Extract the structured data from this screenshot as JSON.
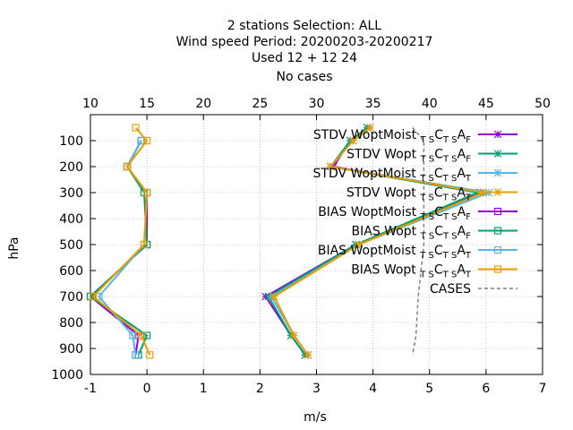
{
  "title_lines": [
    "2 stations Selection: ALL",
    "Wind speed  Period: 20200203-20200217",
    "Used  12 + 12 24",
    "No cases"
  ],
  "chart_data": {
    "type": "line",
    "xlabel": "m/s",
    "ylabel": "hPa",
    "xlim": [
      -1,
      7
    ],
    "ylim": [
      1000,
      0
    ],
    "x_ticks": [
      "-1",
      "0",
      "1",
      "2",
      "3",
      "4",
      "5",
      "6",
      "7"
    ],
    "x2lim": [
      10,
      50
    ],
    "x2_ticks": [
      "10",
      "15",
      "20",
      "25",
      "30",
      "35",
      "40",
      "45",
      "50"
    ],
    "y_ticks": [
      "100",
      "200",
      "300",
      "400",
      "500",
      "600",
      "700",
      "800",
      "900",
      "1000"
    ],
    "grid": true,
    "legend_position": "top-right",
    "levels": [
      50,
      100,
      200,
      300,
      500,
      700,
      850,
      925
    ],
    "series": [
      {
        "name": "STDV WoptMoist TS C TS A F",
        "color": "#9400d3",
        "marker": "asterisk",
        "values": [
          3.9,
          3.6,
          3.3,
          5.9,
          3.7,
          2.1,
          2.55,
          2.8
        ]
      },
      {
        "name": "STDV Wopt TS C TS A F",
        "color": "#009e73",
        "marker": "asterisk",
        "values": [
          3.9,
          3.6,
          3.25,
          5.85,
          3.7,
          2.15,
          2.55,
          2.8
        ]
      },
      {
        "name": "STDV WoptMoist TS C TS A T",
        "color": "#56b4e9",
        "marker": "asterisk",
        "values": [
          3.95,
          3.65,
          3.25,
          6.05,
          3.75,
          2.2,
          2.6,
          2.85
        ]
      },
      {
        "name": "STDV Wopt TS C TS A T",
        "color": "#e69f00",
        "marker": "asterisk",
        "values": [
          3.95,
          3.65,
          3.25,
          5.95,
          3.75,
          2.25,
          2.6,
          2.85
        ]
      },
      {
        "name": "BIAS WoptMoist TS C TS A F",
        "color": "#9400d3",
        "marker": "square",
        "values": [
          null,
          -0.1,
          -0.35,
          0.0,
          0.0,
          -1.0,
          -0.15,
          -0.2
        ]
      },
      {
        "name": "BIAS Wopt TS C TS A F",
        "color": "#009e73",
        "marker": "square",
        "values": [
          null,
          -0.1,
          -0.35,
          -0.05,
          0.0,
          -1.0,
          0.0,
          -0.15
        ]
      },
      {
        "name": "BIAS WoptMoist TS C TS A T",
        "color": "#56b4e9",
        "marker": "square",
        "values": [
          null,
          -0.1,
          -0.35,
          0.0,
          -0.05,
          -0.85,
          -0.25,
          -0.2
        ]
      },
      {
        "name": "BIAS Wopt TS C TS A T",
        "color": "#e69f00",
        "marker": "square",
        "values": [
          -0.2,
          0.0,
          -0.35,
          0.0,
          -0.05,
          -0.95,
          -0.1,
          0.05
        ]
      }
    ],
    "cases": {
      "name": "CASES",
      "color": "#808080",
      "x2_values": [
        38.5,
        39.5,
        39.5,
        39.5,
        39.5,
        39.0,
        38.8,
        38.5
      ],
      "levels": [
        50,
        100,
        200,
        300,
        500,
        700,
        850,
        925
      ]
    },
    "legend_entries": [
      {
        "prefix": "STDV WoptMoist",
        "sub_state": "F"
      },
      {
        "prefix": "STDV Wopt",
        "sub_state": "F"
      },
      {
        "prefix": "STDV WoptMoist",
        "sub_state": "T"
      },
      {
        "prefix": "STDV Wopt",
        "sub_state": "T"
      },
      {
        "prefix": "BIAS WoptMoist",
        "sub_state": "F"
      },
      {
        "prefix": "BIAS Wopt",
        "sub_state": "F"
      },
      {
        "prefix": "BIAS WoptMoist",
        "sub_state": "T"
      },
      {
        "prefix": "BIAS Wopt",
        "sub_state": "T"
      },
      {
        "prefix": "CASES",
        "sub_state": ""
      }
    ],
    "legend_sub_ts": "T S",
    "legend_c": "C",
    "legend_a": "A"
  }
}
